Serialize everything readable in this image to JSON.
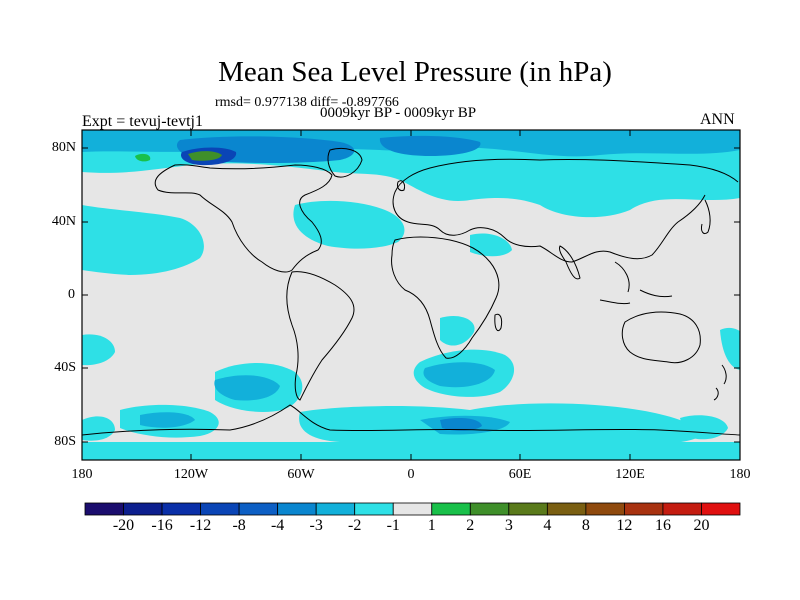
{
  "title": "Mean Sea Level Pressure (in hPa)",
  "stats": "rmsd= 0.977138 diff= -0.897766",
  "period": "0009kyr BP - 0009kyr BP",
  "experiment": "Expt = tevuj-tevtj1",
  "season": "ANN",
  "lat_ticks": [
    "80N",
    "40N",
    "0",
    "40S",
    "80S"
  ],
  "lon_ticks": [
    "180",
    "120W",
    "60W",
    "0",
    "60E",
    "120E",
    "180"
  ],
  "colorbar": {
    "labels": [
      "-20",
      "-16",
      "-12",
      "-8",
      "-4",
      "-3",
      "-2",
      "-1",
      "1",
      "2",
      "3",
      "4",
      "8",
      "12",
      "16",
      "20"
    ],
    "colors": [
      "#1b0d6e",
      "#0d1f8e",
      "#0a2fa8",
      "#0a45b6",
      "#0d5fc4",
      "#0a86cf",
      "#12b0da",
      "#2ee0e6",
      "#e6e6e6",
      "#19c04a",
      "#3f8f2a",
      "#5a7a1b",
      "#7a5f12",
      "#8f4a0e",
      "#a83210",
      "#c41c10",
      "#e01010"
    ]
  },
  "colors": {
    "background": "#e6e6e6",
    "neg1": "#2ee0e6",
    "neg2": "#12b0da",
    "neg3": "#0a86cf",
    "pos1": "#19c04a"
  }
}
